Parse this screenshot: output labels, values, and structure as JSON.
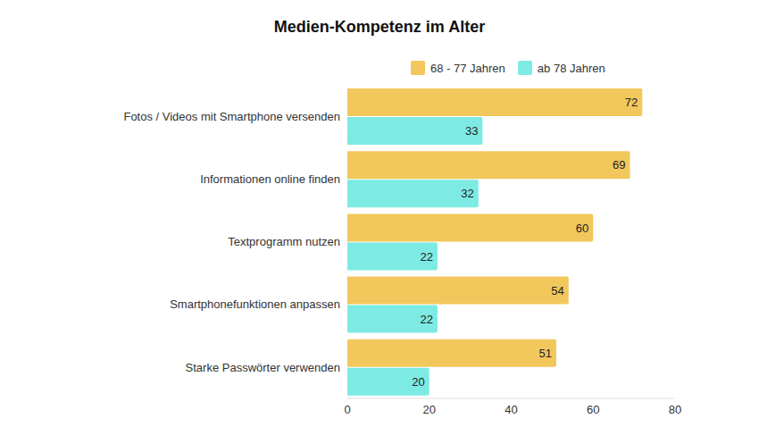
{
  "chart_data": {
    "type": "bar",
    "title": "Medien-Kompetenz im Alter",
    "orientation": "horizontal",
    "categories": [
      "Fotos / Videos mit Smartphone versenden",
      "Informationen online finden",
      "Textprogramm nutzen",
      "Smartphonefunktionen anpassen",
      "Starke Passwörter verwenden"
    ],
    "series": [
      {
        "name": "68 - 77 Jahren",
        "color": "#f2c75c",
        "values": [
          72,
          69,
          60,
          54,
          51
        ]
      },
      {
        "name": "ab 78 Jahren",
        "color": "#7debe4",
        "values": [
          33,
          32,
          22,
          22,
          20
        ]
      }
    ],
    "xlim": [
      0,
      80
    ],
    "xticks": [
      0,
      20,
      40,
      60,
      80
    ],
    "grid": false,
    "legend": "top",
    "data_labels": true
  }
}
